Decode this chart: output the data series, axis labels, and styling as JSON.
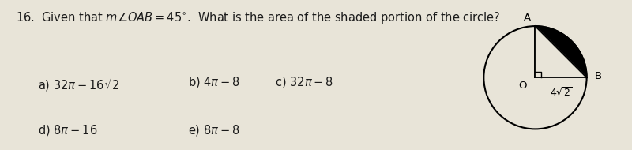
{
  "bg_color": "#e8e4d8",
  "text_color": "#1a1a1a",
  "q_num": "16.",
  "q_text1": "Given that $m\\angle OAB = 45^{\\circ}$.",
  "q_text2": "What is the area of the shaded portion of the circle?",
  "opt_a": "a) $32\\pi - 16\\sqrt{2}$",
  "opt_b": "b) $4\\pi - 8$",
  "opt_c": "c) $32\\pi - 8$",
  "opt_d": "d) $8\\pi - 16$",
  "opt_e": "e) $8\\pi - 8$",
  "label_A": "A",
  "label_B": "B",
  "label_O": "O",
  "label_dist": "$4\\sqrt{2}$",
  "font_size_question": 10.5,
  "font_size_options": 10.5,
  "font_size_labels": 9.5,
  "font_size_dist": 9.0
}
